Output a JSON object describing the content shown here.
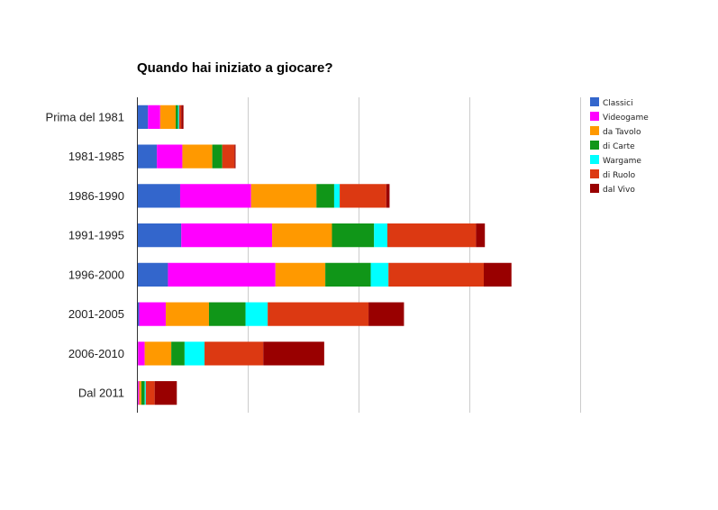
{
  "chart_data": {
    "type": "bar",
    "orientation": "horizontal",
    "stacked": true,
    "title": "Quando hai iniziato a giocare?",
    "xlabel": "",
    "ylabel": "",
    "xlim": [
      0,
      400
    ],
    "grid": true,
    "legend_position": "right",
    "categories": [
      "Prima del 1981",
      "1981-1985",
      "1986-1990",
      "1991-1995",
      "1996-2000",
      "2001-2005",
      "2006-2010",
      "Dal 2011"
    ],
    "series": [
      {
        "name": "Classici",
        "color": "#3366cc",
        "values": [
          10,
          18,
          39,
          40,
          28,
          2,
          1,
          1
        ]
      },
      {
        "name": "Videogame",
        "color": "#ff00ff",
        "values": [
          11,
          23,
          64,
          82,
          97,
          24,
          6,
          1
        ]
      },
      {
        "name": "da Tavolo",
        "color": "#ff9900",
        "values": [
          14,
          27,
          59,
          54,
          45,
          39,
          24,
          2
        ]
      },
      {
        "name": "di Carte",
        "color": "#109618",
        "values": [
          2,
          9,
          16,
          38,
          41,
          33,
          12,
          3
        ]
      },
      {
        "name": "Wargame",
        "color": "#00ffff",
        "values": [
          1,
          0,
          5,
          12,
          16,
          20,
          18,
          1
        ]
      },
      {
        "name": "di Ruolo",
        "color": "#dc3912",
        "values": [
          2,
          11,
          42,
          80,
          86,
          91,
          53,
          8
        ]
      },
      {
        "name": "dal Vivo",
        "color": "#990000",
        "values": [
          2,
          1,
          3,
          8,
          25,
          32,
          55,
          20
        ]
      }
    ]
  }
}
